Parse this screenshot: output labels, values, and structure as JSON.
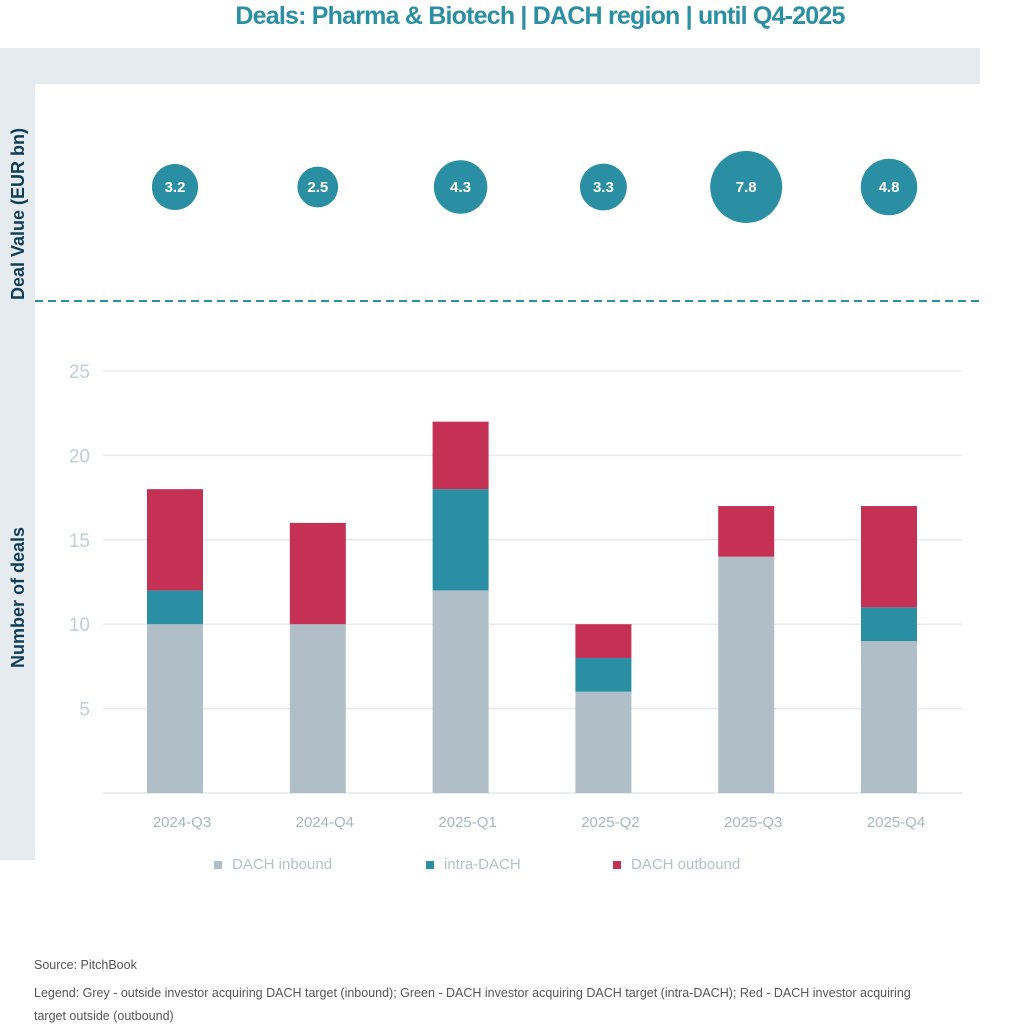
{
  "title": "Deals: Pharma & Biotech | DACH region | until Q4-2025",
  "footer": {
    "source": "Source: PitchBook",
    "legend_note": "Legend: Grey - outside investor acquiring DACH target (inbound); Green - DACH investor acquiring DACH target (intra-DACH); Red - DACH investor acquiring target outside (outbound)"
  },
  "chart_data": [
    {
      "type": "scatter",
      "subtype": "bubble",
      "title": "",
      "ylabel": "Deal Value (EUR bn)",
      "categories": [
        "2024-Q3",
        "2024-Q4",
        "2025-Q1",
        "2025-Q2",
        "2025-Q3",
        "2025-Q4"
      ],
      "values": [
        3.2,
        2.5,
        4.3,
        3.3,
        7.8,
        4.8
      ],
      "labels": [
        "3.2",
        "2.5",
        "4.3",
        "3.3",
        "7.8",
        "4.8"
      ],
      "color": "#2b8fa3"
    },
    {
      "type": "bar",
      "stacked": true,
      "ylabel": "Number of deals",
      "xlabel": "",
      "categories": [
        "2024-Q3",
        "2024-Q4",
        "2025-Q1",
        "2025-Q2",
        "2025-Q3",
        "2025-Q4"
      ],
      "yticks": [
        5,
        10,
        15,
        20,
        25
      ],
      "ylim": [
        0,
        25
      ],
      "grid": true,
      "legend_position": "bottom",
      "series": [
        {
          "name": "DACH inbound",
          "color": "#afbec7",
          "values": [
            10,
            10,
            12,
            6,
            14,
            9
          ]
        },
        {
          "name": "intra-DACH",
          "color": "#2b8fa3",
          "values": [
            2,
            0,
            6,
            2,
            0,
            2
          ]
        },
        {
          "name": "DACH outbound",
          "color": "#c43155",
          "values": [
            6,
            6,
            4,
            2,
            3,
            6
          ]
        }
      ]
    }
  ]
}
